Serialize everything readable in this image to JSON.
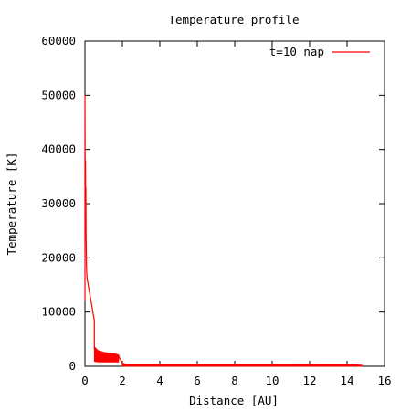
{
  "chart_data": {
    "type": "line",
    "title": "Temperature profile",
    "xlabel": "Distance [AU]",
    "ylabel": "Temperature [K]",
    "xlim": [
      0,
      16
    ],
    "ylim": [
      0,
      60000
    ],
    "x_ticks": [
      0,
      2,
      4,
      6,
      8,
      10,
      12,
      14,
      16
    ],
    "y_ticks": [
      0,
      10000,
      20000,
      30000,
      40000,
      50000,
      60000
    ],
    "grid": false,
    "legend_position": "top-right",
    "series": [
      {
        "name": "t=10 nap",
        "color": "#ff0000",
        "x": [
          0.0,
          0.0,
          0.02,
          0.03,
          0.04,
          0.05,
          0.06,
          0.07,
          0.08,
          0.1,
          0.12,
          0.15,
          0.2,
          0.25,
          0.3,
          0.35,
          0.4,
          0.45,
          0.5,
          0.5,
          0.55,
          0.6,
          0.8,
          1.0,
          1.2,
          1.4,
          1.6,
          1.8,
          1.85,
          1.9,
          2.0,
          2.2,
          2.5,
          3.0,
          4.0,
          6.0,
          8.0,
          10.0,
          12.0,
          14.0,
          14.5,
          14.7,
          14.8
        ],
        "y": [
          12000,
          50000,
          28000,
          38000,
          31000,
          33000,
          24000,
          22000,
          19000,
          17000,
          16000,
          15500,
          14500,
          13500,
          12500,
          11500,
          10500,
          9500,
          8500,
          3200,
          2900,
          2600,
          2500,
          2400,
          2300,
          2200,
          2100,
          2000,
          1500,
          1200,
          600,
          300,
          250,
          200,
          180,
          180,
          180,
          180,
          180,
          180,
          150,
          100,
          0
        ]
      }
    ],
    "bands": [
      {
        "x": [
          0.5,
          0.7,
          1.0,
          1.3,
          1.6,
          1.8
        ],
        "upper": [
          3600,
          2900,
          2600,
          2400,
          2300,
          2100
        ],
        "lower": [
          900,
          800,
          800,
          800,
          800,
          800
        ]
      },
      {
        "x": [
          2.0,
          5.0,
          10.0,
          14.0,
          14.8
        ],
        "upper": [
          400,
          380,
          380,
          360,
          200
        ],
        "lower": [
          0,
          0,
          0,
          0,
          0
        ]
      }
    ]
  }
}
